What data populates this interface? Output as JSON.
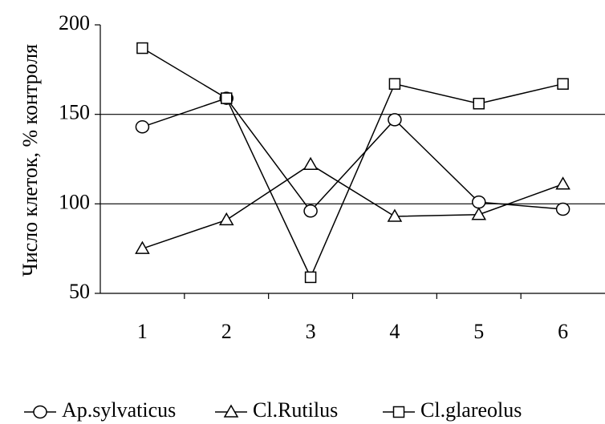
{
  "chart_data": {
    "type": "line",
    "y_label": "Число клеток, % контроля",
    "categories": [
      "1",
      "2",
      "3",
      "4",
      "5",
      "6"
    ],
    "series": [
      {
        "name": "Ap.sylvaticus",
        "color": "#000000",
        "marker": "circle",
        "values": [
          143,
          159,
          96,
          147,
          101,
          97
        ]
      },
      {
        "name": "Cl.Rutilus",
        "color": "#000000",
        "marker": "triangle",
        "values": [
          75,
          91,
          122,
          93,
          94,
          111
        ]
      },
      {
        "name": "Cl.glareolus",
        "color": "#000000",
        "marker": "square",
        "values": [
          187,
          159,
          59,
          167,
          156,
          167
        ]
      }
    ],
    "ylim": [
      50,
      200
    ],
    "yticks": [
      50,
      100,
      150,
      200
    ],
    "grid": true,
    "legend": "bottom"
  }
}
